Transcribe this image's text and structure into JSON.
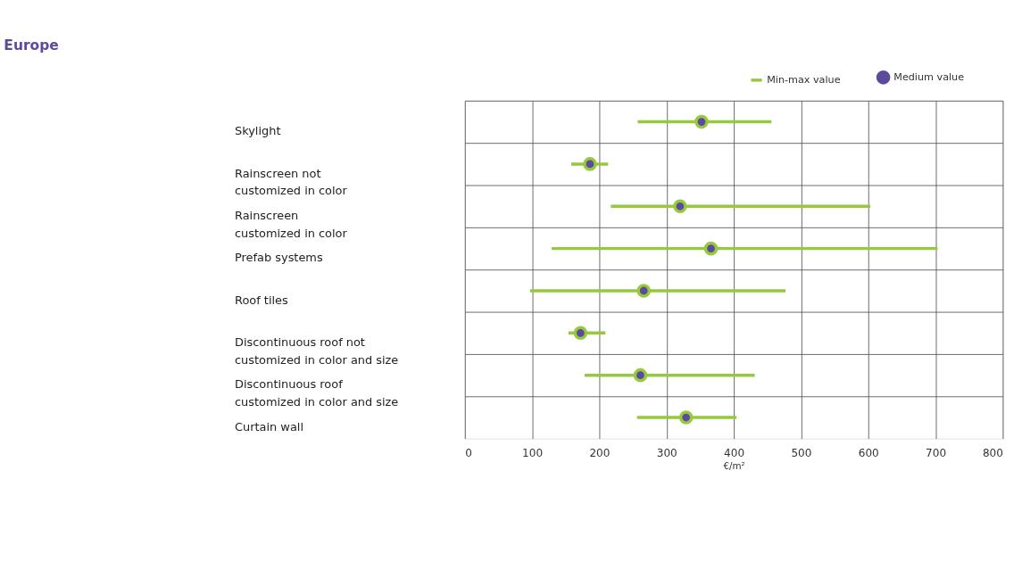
{
  "chart_data": {
    "type": "bar",
    "orientation": "horizontal",
    "title": "Europe",
    "xlabel": "€/m²",
    "categories": [
      "Skylight",
      "Rainscreen not\ncustomized in color",
      "Rainscreen\ncustomized in color",
      "Prefab systems",
      "Roof tiles",
      "Discontinuous roof not\ncustomized in color and size",
      "Discontinuous roof\ncustomized in color and size",
      "Curtain wall"
    ],
    "series": [
      {
        "name": "Min-max value",
        "color": "#97c93d",
        "base": [
          257,
          158,
          217,
          129,
          97,
          154,
          178,
          256
        ],
        "values": [
          199,
          55,
          386,
          574,
          380,
          55,
          253,
          148
        ]
      },
      {
        "name": "Medium value",
        "type": "scatter",
        "color": "#5c4a9e",
        "values": [
          352,
          186,
          320,
          366,
          266,
          172,
          261,
          329
        ]
      }
    ],
    "xlim": [
      0,
      800
    ],
    "xticks": [
      0,
      100,
      200,
      300,
      400,
      500,
      600,
      700,
      800
    ],
    "grid": true,
    "legend": "top right",
    "marker": "circle"
  }
}
